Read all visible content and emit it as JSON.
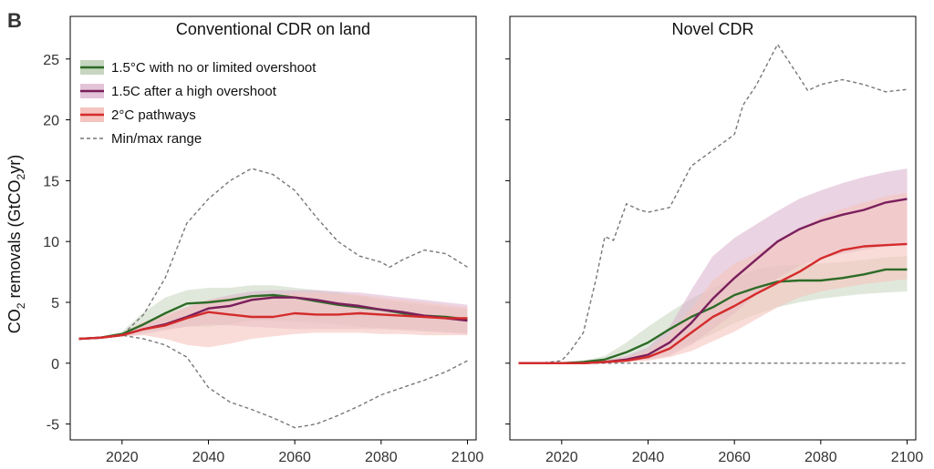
{
  "panel_label": "B",
  "ylabel": "CO₂ removals (GtCO₂yr)",
  "ylabel_parts": {
    "pre": "CO",
    "sub1": "2",
    "mid": " removals (GtCO",
    "sub2": "2",
    "post": "yr)"
  },
  "legend": [
    {
      "label": "1.5°C with no or limited overshoot",
      "color": "#2d6b27",
      "fill": "#c6d6bf",
      "kind": "band"
    },
    {
      "label": "1.5C after a high overshoot",
      "color": "#7a1f5c",
      "fill": "#e3c3d8",
      "kind": "band"
    },
    {
      "label": "2°C pathways",
      "color": "#d42b2b",
      "fill": "#f5c4be",
      "kind": "band"
    },
    {
      "label": "Min/max range",
      "color": "#777777",
      "kind": "dashed"
    }
  ],
  "chart_data": [
    {
      "type": "line",
      "title": "Conventional CDR on land",
      "xlim": [
        2008,
        2102
      ],
      "ylim": [
        -6.3,
        28.5
      ],
      "xticks": [
        2020,
        2040,
        2060,
        2080,
        2100
      ],
      "yticks": [
        -5,
        0,
        5,
        10,
        15,
        20,
        25
      ],
      "min_range": {
        "x": [
          2010,
          2015,
          2020,
          2025,
          2030,
          2035,
          2040,
          2045,
          2050,
          2055,
          2060,
          2065,
          2070,
          2075,
          2080,
          2085,
          2090,
          2095,
          2100
        ],
        "y": [
          2.0,
          2.1,
          2.3,
          2.0,
          1.5,
          0.5,
          -2.0,
          -3.2,
          -3.8,
          -4.5,
          -5.3,
          -5.0,
          -4.3,
          -3.5,
          -2.6,
          -2.0,
          -1.4,
          -0.7,
          0.2
        ]
      },
      "max_range": {
        "x": [
          2010,
          2015,
          2020,
          2025,
          2030,
          2035,
          2040,
          2045,
          2050,
          2055,
          2060,
          2065,
          2070,
          2075,
          2080,
          2082,
          2085,
          2090,
          2095,
          2100
        ],
        "y": [
          2.0,
          2.1,
          2.3,
          4.0,
          7.0,
          11.5,
          13.5,
          15.0,
          16.0,
          15.5,
          14.2,
          12.0,
          10.0,
          8.8,
          8.3,
          7.9,
          8.5,
          9.3,
          9.0,
          7.9
        ]
      },
      "series": [
        {
          "name": "1.5°C with no or limited overshoot",
          "color": "#2d6b27",
          "fill": "#c6d6bf",
          "fill_opacity": 0.55,
          "x": [
            2010,
            2015,
            2020,
            2025,
            2030,
            2035,
            2040,
            2045,
            2050,
            2055,
            2060,
            2065,
            2070,
            2075,
            2080,
            2085,
            2090,
            2095,
            2100
          ],
          "y": [
            2.0,
            2.1,
            2.4,
            3.2,
            4.1,
            4.9,
            5.0,
            5.2,
            5.5,
            5.6,
            5.4,
            5.1,
            4.8,
            4.6,
            4.4,
            4.1,
            3.9,
            3.8,
            3.6
          ],
          "lower": [
            2.0,
            2.1,
            2.3,
            2.6,
            2.8,
            3.0,
            3.0,
            3.2,
            3.5,
            3.5,
            3.4,
            3.3,
            3.2,
            3.0,
            2.9,
            2.8,
            2.7,
            2.6,
            2.5
          ],
          "upper": [
            2.0,
            2.2,
            2.6,
            4.2,
            5.4,
            6.0,
            6.2,
            6.2,
            6.4,
            6.4,
            6.2,
            6.0,
            5.8,
            5.5,
            5.2,
            5.0,
            4.8,
            4.6,
            4.4
          ]
        },
        {
          "name": "1.5C after a high overshoot",
          "color": "#7a1f5c",
          "fill": "#d9aecb",
          "fill_opacity": 0.5,
          "x": [
            2010,
            2015,
            2020,
            2025,
            2030,
            2035,
            2040,
            2045,
            2050,
            2055,
            2060,
            2065,
            2070,
            2075,
            2080,
            2085,
            2090,
            2095,
            2100
          ],
          "y": [
            2.0,
            2.1,
            2.3,
            2.8,
            3.2,
            3.8,
            4.5,
            4.7,
            5.2,
            5.4,
            5.4,
            5.2,
            4.9,
            4.7,
            4.4,
            4.2,
            3.9,
            3.7,
            3.5
          ],
          "lower": [
            2.0,
            2.1,
            2.2,
            2.4,
            2.7,
            3.0,
            3.2,
            3.1,
            3.0,
            2.9,
            2.8,
            2.8,
            2.8,
            2.8,
            2.8,
            2.7,
            2.6,
            2.5,
            2.4
          ],
          "upper": [
            2.0,
            2.1,
            2.4,
            3.2,
            3.8,
            4.6,
            5.2,
            5.6,
            5.9,
            6.0,
            6.0,
            6.0,
            5.9,
            5.8,
            5.6,
            5.4,
            5.2,
            5.0,
            4.8
          ]
        },
        {
          "name": "2°C pathways",
          "color": "#d42b2b",
          "fill": "#f5c4be",
          "fill_opacity": 0.6,
          "x": [
            2010,
            2015,
            2020,
            2025,
            2030,
            2035,
            2040,
            2045,
            2050,
            2055,
            2060,
            2065,
            2070,
            2075,
            2080,
            2085,
            2090,
            2095,
            2100
          ],
          "y": [
            2.0,
            2.1,
            2.3,
            2.8,
            3.1,
            3.7,
            4.2,
            4.0,
            3.8,
            3.8,
            4.1,
            4.0,
            4.0,
            4.1,
            4.0,
            3.9,
            3.8,
            3.7,
            3.7
          ],
          "lower": [
            2.0,
            2.1,
            2.2,
            2.3,
            2.0,
            1.5,
            1.3,
            1.6,
            2.0,
            2.2,
            2.4,
            2.5,
            2.5,
            2.5,
            2.4,
            2.4,
            2.3,
            2.3,
            2.3
          ],
          "upper": [
            2.0,
            2.1,
            2.5,
            3.4,
            4.0,
            4.6,
            5.2,
            5.4,
            5.5,
            5.6,
            5.8,
            5.8,
            5.7,
            5.6,
            5.4,
            5.2,
            5.0,
            4.8,
            4.6
          ]
        }
      ]
    },
    {
      "type": "line",
      "title": "Novel CDR",
      "xlim": [
        2008,
        2102
      ],
      "ylim": [
        -6.3,
        28.5
      ],
      "xticks": [
        2020,
        2040,
        2060,
        2080,
        2100
      ],
      "yticks": [
        -5,
        0,
        5,
        10,
        15,
        20,
        25
      ],
      "min_range": {
        "x": [
          2010,
          2100
        ],
        "y": [
          0.0,
          0.0
        ]
      },
      "max_range": {
        "x": [
          2010,
          2015,
          2020,
          2022,
          2025,
          2028,
          2030,
          2032,
          2035,
          2038,
          2040,
          2045,
          2050,
          2055,
          2060,
          2062,
          2065,
          2070,
          2075,
          2077,
          2080,
          2085,
          2090,
          2095,
          2100
        ],
        "y": [
          0.0,
          0.0,
          0.2,
          1.0,
          2.5,
          7.0,
          10.4,
          10.1,
          13.1,
          12.6,
          12.4,
          12.8,
          16.2,
          17.5,
          18.8,
          21.2,
          22.8,
          26.2,
          23.5,
          22.4,
          22.9,
          23.3,
          22.9,
          22.3,
          22.5
        ]
      },
      "series": [
        {
          "name": "1.5°C with no or limited overshoot",
          "color": "#2d6b27",
          "fill": "#c6d6bf",
          "fill_opacity": 0.55,
          "x": [
            2010,
            2015,
            2020,
            2025,
            2030,
            2035,
            2040,
            2045,
            2050,
            2055,
            2060,
            2065,
            2070,
            2075,
            2080,
            2085,
            2090,
            2095,
            2100
          ],
          "y": [
            0.0,
            0.0,
            0.0,
            0.1,
            0.3,
            0.9,
            1.7,
            2.8,
            3.8,
            4.6,
            5.6,
            6.2,
            6.7,
            6.8,
            6.8,
            7.0,
            7.3,
            7.7,
            7.7
          ],
          "lower": [
            0.0,
            0.0,
            0.0,
            0.0,
            0.1,
            0.3,
            0.6,
            1.0,
            1.6,
            2.4,
            3.3,
            4.0,
            4.6,
            5.0,
            5.3,
            5.5,
            5.7,
            5.8,
            5.9
          ],
          "upper": [
            0.0,
            0.0,
            0.0,
            0.2,
            0.6,
            1.7,
            3.0,
            4.2,
            5.3,
            6.2,
            7.0,
            7.7,
            8.0,
            8.1,
            8.2,
            8.3,
            8.5,
            8.7,
            8.8
          ]
        },
        {
          "name": "1.5C after a high overshoot",
          "color": "#7a1f5c",
          "fill": "#d9aecb",
          "fill_opacity": 0.55,
          "x": [
            2010,
            2015,
            2020,
            2025,
            2030,
            2035,
            2040,
            2045,
            2050,
            2055,
            2060,
            2065,
            2070,
            2075,
            2080,
            2085,
            2090,
            2095,
            2100
          ],
          "y": [
            0.0,
            0.0,
            0.0,
            0.0,
            0.1,
            0.3,
            0.7,
            1.7,
            3.3,
            5.3,
            7.0,
            8.5,
            10.0,
            11.0,
            11.7,
            12.2,
            12.6,
            13.2,
            13.5
          ],
          "lower": [
            0.0,
            0.0,
            0.0,
            0.0,
            0.0,
            0.1,
            0.3,
            0.6,
            1.5,
            2.8,
            4.1,
            5.6,
            7.0,
            8.0,
            8.6,
            9.0,
            9.3,
            9.6,
            9.9
          ],
          "upper": [
            0.0,
            0.0,
            0.0,
            0.0,
            0.2,
            0.6,
            1.3,
            3.0,
            6.0,
            8.8,
            10.3,
            11.4,
            12.5,
            13.5,
            14.2,
            14.8,
            15.3,
            15.7,
            16.0
          ]
        },
        {
          "name": "2°C pathways",
          "color": "#d42b2b",
          "fill": "#f5c4be",
          "fill_opacity": 0.6,
          "x": [
            2010,
            2015,
            2020,
            2025,
            2030,
            2035,
            2040,
            2045,
            2050,
            2055,
            2060,
            2065,
            2070,
            2075,
            2080,
            2085,
            2090,
            2095,
            2100
          ],
          "y": [
            0.0,
            0.0,
            0.0,
            0.0,
            0.1,
            0.2,
            0.5,
            1.2,
            2.5,
            3.8,
            4.7,
            5.7,
            6.6,
            7.5,
            8.6,
            9.3,
            9.6,
            9.7,
            9.8
          ],
          "lower": [
            0.0,
            0.0,
            0.0,
            0.0,
            0.0,
            0.1,
            0.2,
            0.5,
            1.0,
            1.8,
            2.6,
            3.6,
            4.6,
            5.4,
            5.9,
            6.2,
            6.5,
            6.7,
            6.9
          ],
          "upper": [
            0.0,
            0.0,
            0.0,
            0.0,
            0.2,
            0.5,
            1.0,
            2.4,
            4.5,
            6.8,
            8.2,
            9.0,
            10.0,
            11.0,
            12.0,
            12.7,
            13.2,
            13.7,
            14.0
          ]
        }
      ]
    }
  ]
}
